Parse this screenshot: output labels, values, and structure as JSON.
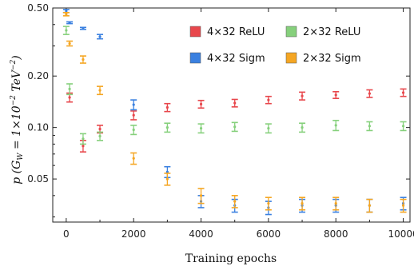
{
  "chart_data": {
    "type": "scatter",
    "title": "",
    "xlabel": "Training epochs",
    "ylabel_html": "p (G<tspan font-size='9' dy='3'>W</tspan><tspan dy='-3'> = 1×10</tspan><tspan font-size='9' dy='-6'>−2</tspan><tspan dy='6'> TeV</tspan><tspan font-size='9' dy='-6'>−2</tspan><tspan dy='6'>)</tspan>",
    "xlim": [
      -400,
      10200
    ],
    "ylim": [
      0.028,
      0.5
    ],
    "yscale": "log",
    "x_ticks": [
      0,
      2000,
      4000,
      6000,
      8000,
      10000
    ],
    "x_tick_labels": [
      "0",
      "2000",
      "4000",
      "6000",
      "8000",
      "10000"
    ],
    "y_ticks": [
      0.05,
      0.1,
      0.2,
      0.5
    ],
    "y_tick_labels": [
      "0.05",
      "0.10",
      "0.20",
      "0.50"
    ],
    "legend_placement": "top-right",
    "series": [
      {
        "name": "4×32 ReLU",
        "color": "#e8474c",
        "x": [
          100,
          500,
          1000,
          2000,
          3000,
          4000,
          5000,
          6000,
          7000,
          8000,
          9000,
          10000
        ],
        "y": [
          0.15,
          0.078,
          0.098,
          0.118,
          0.131,
          0.137,
          0.139,
          0.145,
          0.153,
          0.155,
          0.158,
          0.16
        ],
        "err": [
          0.009,
          0.006,
          0.005,
          0.007,
          0.007,
          0.007,
          0.007,
          0.007,
          0.008,
          0.007,
          0.008,
          0.008
        ]
      },
      {
        "name": "2×32 ReLU",
        "color": "#86d07c",
        "x": [
          0,
          100,
          500,
          1000,
          2000,
          3000,
          4000,
          5000,
          6000,
          7000,
          8000,
          9000,
          10000
        ],
        "y": [
          0.37,
          0.168,
          0.086,
          0.089,
          0.097,
          0.1,
          0.099,
          0.101,
          0.099,
          0.1,
          0.103,
          0.102,
          0.102
        ],
        "err": [
          0.02,
          0.012,
          0.006,
          0.005,
          0.006,
          0.006,
          0.006,
          0.006,
          0.006,
          0.006,
          0.007,
          0.006,
          0.006
        ]
      },
      {
        "name": "4×32 Sigm",
        "color": "#3a80e0",
        "x": [
          0,
          100,
          500,
          1000,
          2000,
          3000,
          4000,
          5000,
          6000,
          7000,
          8000,
          9000,
          10000
        ],
        "y": [
          0.48,
          0.41,
          0.38,
          0.34,
          0.136,
          0.055,
          0.037,
          0.035,
          0.034,
          0.035,
          0.035,
          0.035,
          0.036
        ],
        "err": [
          0.01,
          0.005,
          0.005,
          0.01,
          0.009,
          0.004,
          0.003,
          0.003,
          0.003,
          0.003,
          0.003,
          0.003,
          0.003
        ]
      },
      {
        "name": "2×32 Sigm",
        "color": "#f5a623",
        "x": [
          0,
          100,
          500,
          1000,
          2000,
          3000,
          4000,
          5000,
          6000,
          7000,
          8000,
          9000,
          10000
        ],
        "y": [
          0.46,
          0.31,
          0.25,
          0.165,
          0.066,
          0.05,
          0.04,
          0.037,
          0.036,
          0.036,
          0.036,
          0.035,
          0.035
        ],
        "err": [
          0.01,
          0.01,
          0.012,
          0.009,
          0.005,
          0.004,
          0.004,
          0.003,
          0.003,
          0.003,
          0.003,
          0.003,
          0.003
        ]
      }
    ],
    "legend": [
      {
        "label": "4×32 ReLU",
        "color": "#e8474c"
      },
      {
        "label": "2×32 ReLU",
        "color": "#86d07c"
      },
      {
        "label": "4×32 Sigm",
        "color": "#3a80e0"
      },
      {
        "label": "2×32 Sigm",
        "color": "#f5a623"
      }
    ]
  }
}
